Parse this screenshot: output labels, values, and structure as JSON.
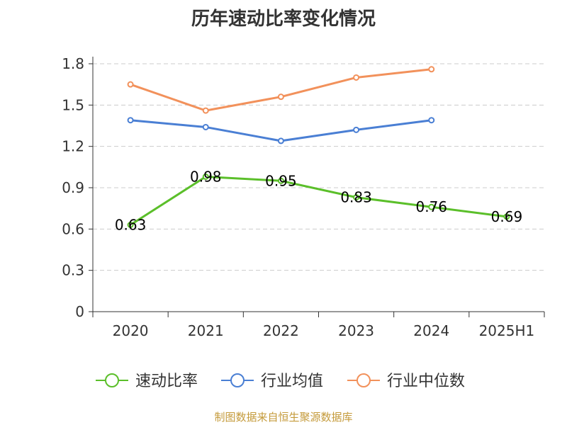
{
  "chart_data": {
    "type": "line",
    "title": "历年速动比率变化情况",
    "categories": [
      "2020",
      "2021",
      "2022",
      "2023",
      "2024",
      "2025H1"
    ],
    "y_ticks": [
      "0",
      "0.3",
      "0.6",
      "0.9",
      "1.2",
      "1.5",
      "1.8"
    ],
    "ylim": [
      0,
      1.8
    ],
    "grid": true,
    "legend_position": "bottom",
    "series": [
      {
        "name": "速动比率",
        "color": "#5bbf2a",
        "values": [
          0.63,
          0.98,
          0.95,
          0.83,
          0.76,
          0.69
        ],
        "labels": [
          "0.63",
          "0.98",
          "0.95",
          "0.83",
          "0.76",
          "0.69"
        ]
      },
      {
        "name": "行业均值",
        "color": "#4a7fd4",
        "values": [
          1.39,
          1.34,
          1.24,
          1.32,
          1.39,
          null
        ]
      },
      {
        "name": "行业中位数",
        "color": "#f2915b",
        "values": [
          1.65,
          1.46,
          1.56,
          1.7,
          1.76,
          null
        ]
      }
    ]
  },
  "source_note": "制图数据来自恒生聚源数据库"
}
